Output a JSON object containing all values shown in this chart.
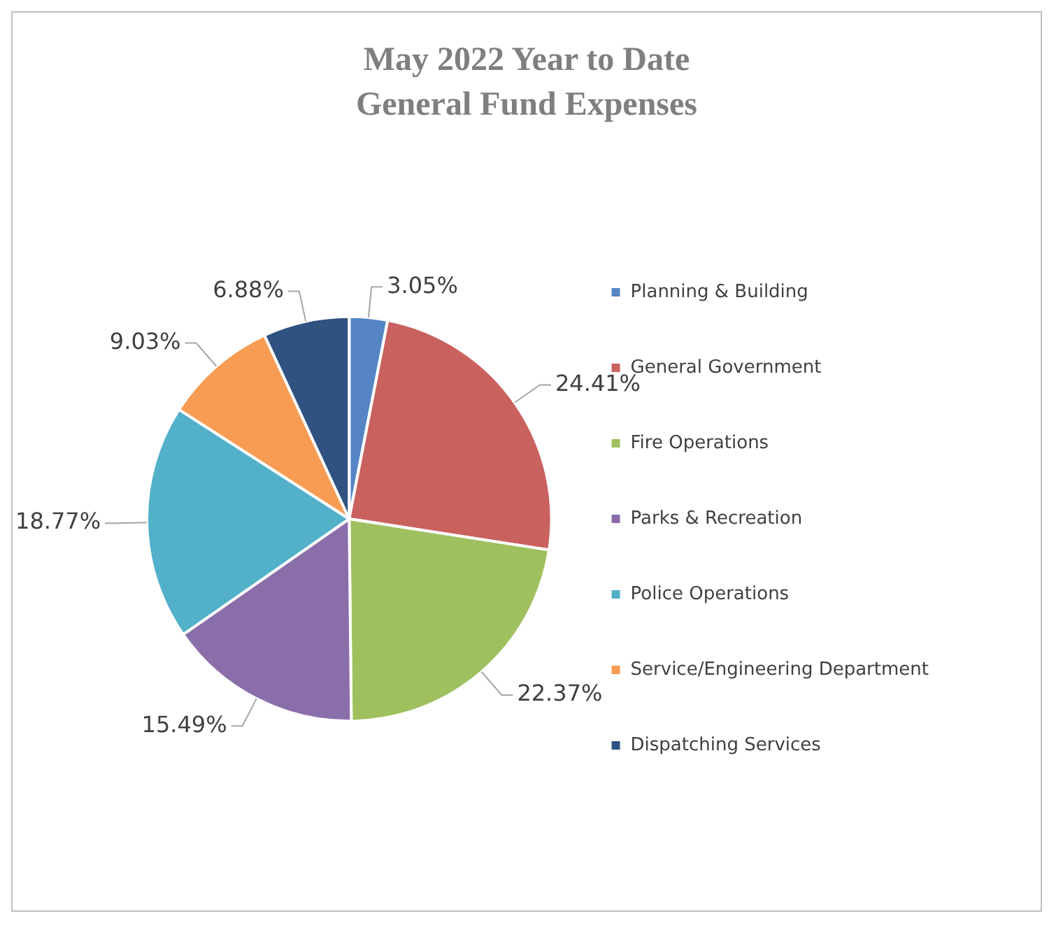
{
  "chart_data": {
    "type": "pie",
    "title": "May 2022 Year to Date General Fund Expenses",
    "categories": [
      "Planning & Building",
      "General Government",
      "Fire Operations",
      "Parks & Recreation",
      "Police Operations",
      "Service/Engineering Department",
      "Dispatching Services"
    ],
    "values": [
      3.05,
      24.41,
      22.37,
      15.49,
      18.77,
      9.03,
      6.88
    ],
    "colors": [
      "#5585c5",
      "#c9615e",
      "#9fc05f",
      "#8a6eaa",
      "#52b0c9",
      "#f79c52",
      "#2f5280"
    ],
    "value_labels": [
      "3.05%",
      "24.41%",
      "22.37%",
      "15.49%",
      "18.77%",
      "9.03%",
      "6.88%"
    ],
    "legend": "right"
  }
}
